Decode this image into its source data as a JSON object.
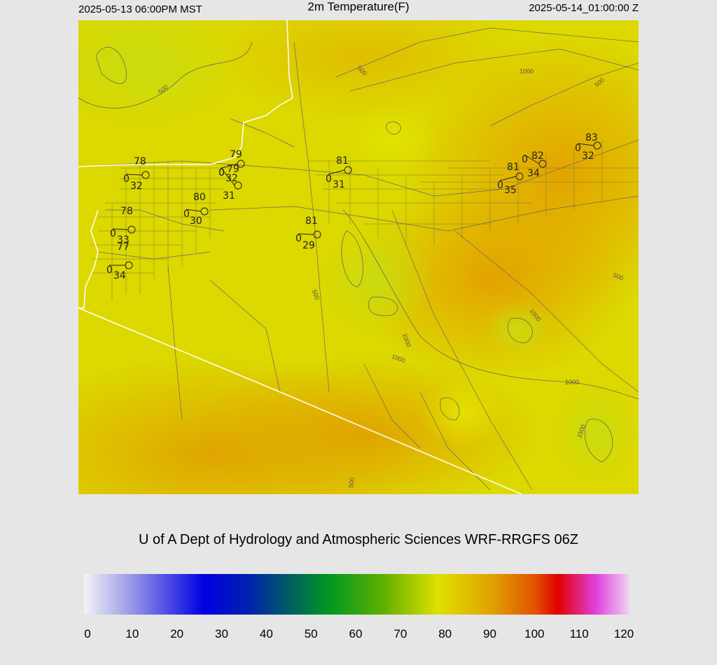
{
  "header": {
    "left": "2025-05-13 06:00PM MST",
    "title": "2m Temperature(F)",
    "right": "2025-05-14_01:00:00 Z"
  },
  "credit": "U of A Dept of Hydrology and Atmospheric Sciences WRF-RRGFS 06Z",
  "stations": [
    {
      "temp": 78,
      "dew": 32,
      "wind": 0
    },
    {
      "temp": 80,
      "dew": 30,
      "wind": 0
    },
    {
      "temp": 79,
      "dew": 32,
      "wind": 0
    },
    {
      "temp": 79,
      "dew": 31,
      "wind": 0
    },
    {
      "temp": 81,
      "dew": 31,
      "wind": 0
    },
    {
      "temp": 81,
      "dew": 29,
      "wind": 0
    },
    {
      "temp": 78,
      "dew": 33,
      "wind": 0
    },
    {
      "temp": 77,
      "dew": 34,
      "wind": 0
    },
    {
      "temp": 81,
      "dew": 35,
      "wind": 0
    },
    {
      "temp": 82,
      "dew": 34,
      "wind": 0
    },
    {
      "temp": 83,
      "dew": 32,
      "wind": 0
    }
  ],
  "contour_labels": [
    500,
    500,
    500,
    500,
    500,
    500,
    1000,
    1000,
    1000,
    1000,
    1000,
    1500
  ],
  "colorbar": {
    "ticks": [
      0,
      10,
      20,
      30,
      40,
      50,
      60,
      70,
      80,
      90,
      100,
      110,
      120
    ]
  }
}
